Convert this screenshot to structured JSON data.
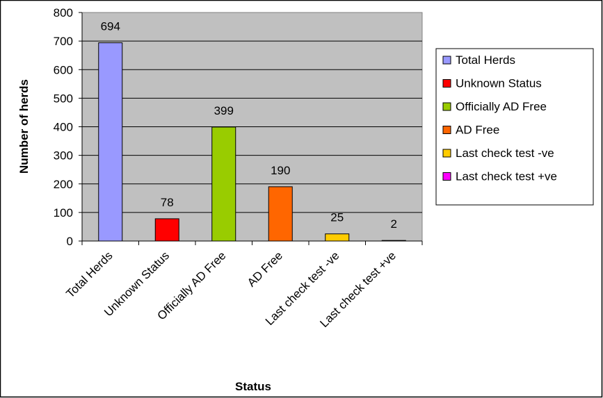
{
  "chart_data": {
    "type": "bar",
    "title": "",
    "xlabel": "Status",
    "ylabel": "Number of herds",
    "ylim": [
      0,
      800
    ],
    "yticks": [
      0,
      100,
      200,
      300,
      400,
      500,
      600,
      700,
      800
    ],
    "grid": true,
    "legend_position": "right",
    "categories": [
      "Total Herds",
      "Unknown Status",
      "Officially AD Free",
      "AD Free",
      "Last check test -ve",
      "Last check test +ve"
    ],
    "values": [
      694,
      78,
      399,
      190,
      25,
      2
    ],
    "data_labels": [
      "694",
      "78",
      "399",
      "190",
      "25",
      "2"
    ],
    "colors": [
      "#9999ff",
      "#ff0000",
      "#99cc00",
      "#ff6600",
      "#ffcc00",
      "#ff00ff"
    ],
    "legend": [
      "Total Herds",
      "Unknown Status",
      "Officially AD Free",
      "AD Free",
      "Last check test -ve",
      "Last check test +ve"
    ],
    "plot_background": "#c0c0c0"
  }
}
